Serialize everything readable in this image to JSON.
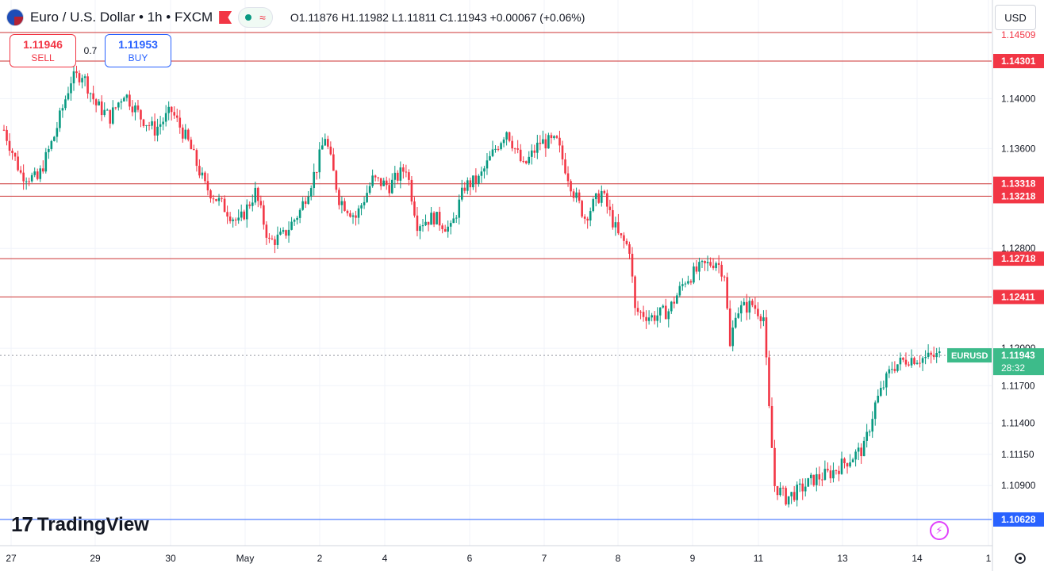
{
  "header": {
    "symbol": "Euro / U.S. Dollar • 1h • FXCM",
    "ohlc": "O1.11876  H1.11982  L1.11811  C1.11943  +0.00067 (+0.06%)",
    "currency": "USD"
  },
  "trade": {
    "sell_price": "1.11946",
    "sell_label": "SELL",
    "spread": "0.7",
    "buy_price": "1.11953",
    "buy_label": "BUY"
  },
  "branding": {
    "logo_text": "TradingView",
    "logo_mark": "17"
  },
  "colors": {
    "up": "#089981",
    "down": "#f23645",
    "level_line": "#cc3333",
    "price_badge": "#3dbb8a",
    "bottom_level": "#2962ff",
    "grid": "#f0f3fa"
  },
  "icons": {
    "flag": "euro-usd-flag-icon",
    "alert": "red-flag-icon",
    "market": "market-open-dot-icon",
    "bolt": "lightning-icon",
    "settings": "gear-icon"
  },
  "chart_data": {
    "type": "candlestick",
    "y_axis": {
      "range": [
        1.1045,
        1.1465
      ],
      "ticks": [
        1.14,
        1.136,
        1.128,
        1.12,
        1.117,
        1.114,
        1.1115,
        1.109
      ],
      "tick_labels": [
        "1.14000",
        "1.13600",
        "1.12800",
        "1.12000",
        "1.11700",
        "1.11400",
        "1.11150",
        "1.10900"
      ]
    },
    "x_axis": {
      "labels": [
        "27",
        "29",
        "30",
        "May",
        "2",
        "4",
        "6",
        "7",
        "8",
        "9",
        "11",
        "13",
        "14",
        "1"
      ]
    },
    "horizontal_levels": [
      {
        "value": 1.14301,
        "label": "1.14301"
      },
      {
        "value": 1.13318,
        "label": "1.13318"
      },
      {
        "value": 1.13218,
        "label": "1.13218"
      },
      {
        "value": 1.12718,
        "label": "1.12718"
      },
      {
        "value": 1.12411,
        "label": "1.12411"
      }
    ],
    "top_level_partial": "1.14509",
    "bottom_level": {
      "value": 1.10628,
      "label": "1.10628"
    },
    "current": {
      "value": 1.11943,
      "label": "1.11943",
      "symbol": "EURUSD",
      "countdown": "28:32"
    },
    "key_path": [
      [
        0,
        1.1375
      ],
      [
        6,
        1.134
      ],
      [
        12,
        1.1335
      ],
      [
        18,
        1.137
      ],
      [
        24,
        1.1415
      ],
      [
        28,
        1.142
      ],
      [
        33,
        1.1395
      ],
      [
        38,
        1.1385
      ],
      [
        43,
        1.1405
      ],
      [
        49,
        1.1385
      ],
      [
        54,
        1.1375
      ],
      [
        60,
        1.139
      ],
      [
        66,
        1.1365
      ],
      [
        72,
        1.133
      ],
      [
        78,
        1.1315
      ],
      [
        84,
        1.13
      ],
      [
        90,
        1.1325
      ],
      [
        95,
        1.1285
      ],
      [
        100,
        1.129
      ],
      [
        106,
        1.131
      ],
      [
        112,
        1.1345
      ],
      [
        115,
        1.137
      ],
      [
        120,
        1.132
      ],
      [
        126,
        1.1305
      ],
      [
        132,
        1.1335
      ],
      [
        138,
        1.133
      ],
      [
        144,
        1.1345
      ],
      [
        148,
        1.13
      ],
      [
        154,
        1.1305
      ],
      [
        160,
        1.1295
      ],
      [
        165,
        1.133
      ],
      [
        170,
        1.1335
      ],
      [
        176,
        1.136
      ],
      [
        180,
        1.1375
      ],
      [
        186,
        1.1345
      ],
      [
        192,
        1.1365
      ],
      [
        198,
        1.1365
      ],
      [
        204,
        1.1325
      ],
      [
        208,
        1.1305
      ],
      [
        214,
        1.1325
      ],
      [
        220,
        1.129
      ],
      [
        224,
        1.128
      ],
      [
        226,
        1.123
      ],
      [
        232,
        1.1225
      ],
      [
        238,
        1.123
      ],
      [
        244,
        1.1255
      ],
      [
        250,
        1.1265
      ],
      [
        255,
        1.127
      ],
      [
        258,
        1.126
      ],
      [
        260,
        1.12
      ],
      [
        262,
        1.123
      ],
      [
        268,
        1.1235
      ],
      [
        272,
        1.1225
      ],
      [
        274,
        1.115
      ],
      [
        276,
        1.109
      ],
      [
        280,
        1.108
      ],
      [
        284,
        1.1085
      ],
      [
        290,
        1.1095
      ],
      [
        296,
        1.11
      ],
      [
        302,
        1.111
      ],
      [
        308,
        1.112
      ],
      [
        312,
        1.1155
      ],
      [
        318,
        1.1185
      ],
      [
        324,
        1.1192
      ],
      [
        330,
        1.1192
      ],
      [
        335,
        1.11943
      ]
    ]
  }
}
